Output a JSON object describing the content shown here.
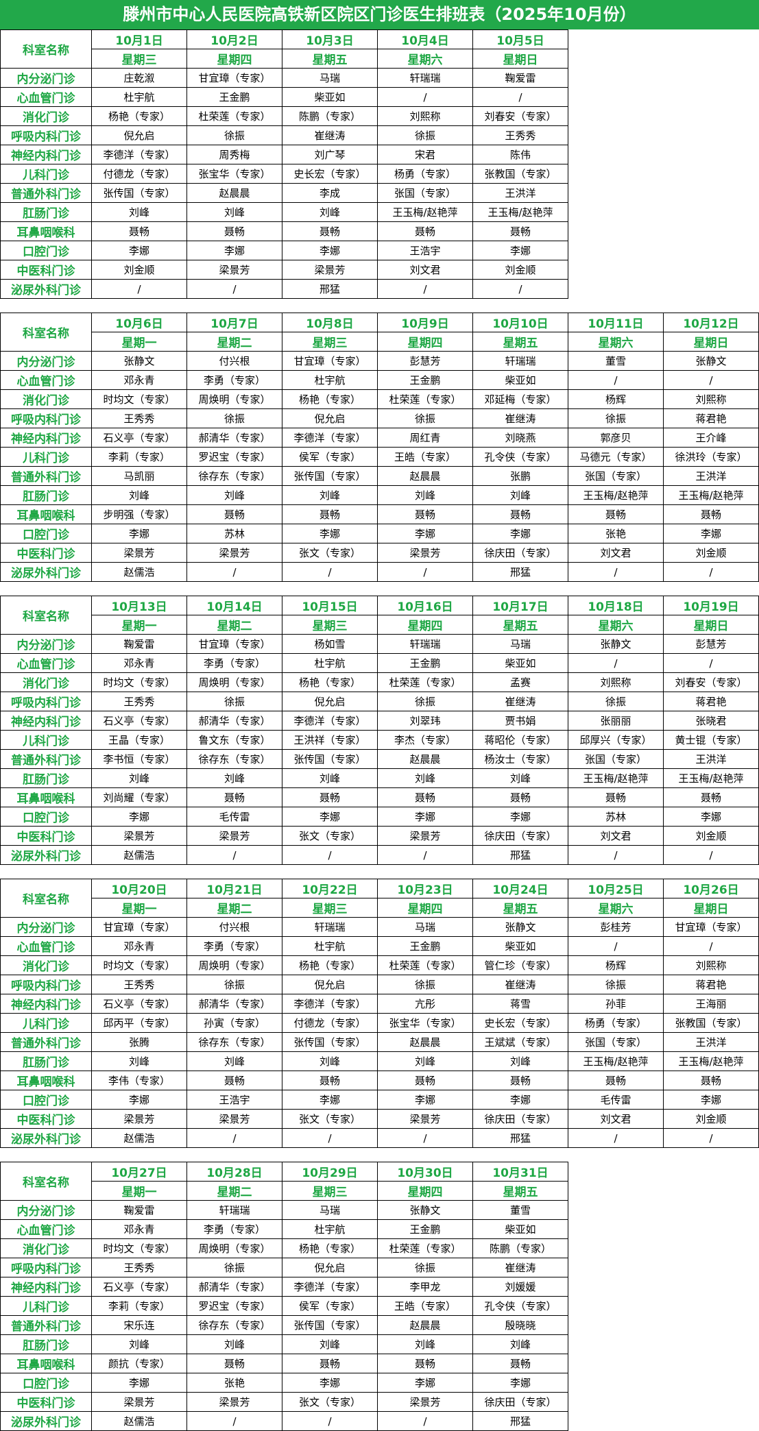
{
  "title": "滕州市中心人民医院高铁新区院区门诊医生排班表（2025年10月份）",
  "header_label": "科室名称",
  "departments": [
    "内分泌门诊",
    "心血管门诊",
    "消化门诊",
    "呼吸内科门诊",
    "神经内科门诊",
    "儿科门诊",
    "普通外科门诊",
    "肛肠门诊",
    "耳鼻咽喉科",
    "口腔门诊",
    "中医科门诊",
    "泌尿外科门诊"
  ],
  "blocks": [
    {
      "dates": [
        "10月1日",
        "10月2日",
        "10月3日",
        "10月4日",
        "10月5日"
      ],
      "weekdays": [
        "星期三",
        "星期四",
        "星期五",
        "星期六",
        "星期日"
      ],
      "rows": [
        [
          "庄乾溆",
          "甘宜璋（专家）",
          "马瑞",
          "轩瑞瑞",
          "鞠爱雷"
        ],
        [
          "杜宇航",
          "王金鹏",
          "柴亚如",
          "/",
          "/"
        ],
        [
          "杨艳（专家）",
          "杜荣莲（专家）",
          "陈鹏（专家）",
          "刘熙称",
          "刘春安（专家）"
        ],
        [
          "倪允启",
          "徐振",
          "崔继涛",
          "徐振",
          "王秀秀"
        ],
        [
          "李德洋（专家）",
          "周秀梅",
          "刘广琴",
          "宋君",
          "陈伟"
        ],
        [
          "付德龙（专家）",
          "张宝华（专家）",
          "史长宏（专家）",
          "杨勇（专家）",
          "张教国（专家）"
        ],
        [
          "张传国（专家）",
          "赵晨晨",
          "李成",
          "张国（专家）",
          "王洪洋"
        ],
        [
          "刘峰",
          "刘峰",
          "刘峰",
          "王玉梅/赵艳萍",
          "王玉梅/赵艳萍"
        ],
        [
          "聂畅",
          "聂畅",
          "聂畅",
          "聂畅",
          "聂畅"
        ],
        [
          "李娜",
          "李娜",
          "李娜",
          "王浩宇",
          "李娜"
        ],
        [
          "刘金顺",
          "梁景芳",
          "梁景芳",
          "刘文君",
          "刘金顺"
        ],
        [
          "/",
          "/",
          "邢猛",
          "/",
          "/"
        ]
      ]
    },
    {
      "dates": [
        "10月6日",
        "10月7日",
        "10月8日",
        "10月9日",
        "10月10日",
        "10月11日",
        "10月12日"
      ],
      "weekdays": [
        "星期一",
        "星期二",
        "星期三",
        "星期四",
        "星期五",
        "星期六",
        "星期日"
      ],
      "rows": [
        [
          "张静文",
          "付兴根",
          "甘宜璋（专家）",
          "彭慧芳",
          "轩瑞瑞",
          "董雪",
          "张静文"
        ],
        [
          "邓永青",
          "李勇（专家）",
          "杜宇航",
          "王金鹏",
          "柴亚如",
          "/",
          "/"
        ],
        [
          "时均文（专家）",
          "周焕明（专家）",
          "杨艳（专家）",
          "杜荣莲（专家）",
          "邓延梅（专家）",
          "杨辉",
          "刘熙称"
        ],
        [
          "王秀秀",
          "徐振",
          "倪允启",
          "徐振",
          "崔继涛",
          "徐振",
          "蒋君艳"
        ],
        [
          "石义亭（专家）",
          "郝清华（专家）",
          "李德洋（专家）",
          "周红青",
          "刘晓燕",
          "郭彦贝",
          "王介峰"
        ],
        [
          "李莉（专家）",
          "罗迟宝（专家）",
          "侯军（专家）",
          "王皓（专家）",
          "孔令侠（专家）",
          "马德元（专家）",
          "徐洪玲（专家）"
        ],
        [
          "马凯丽",
          "徐存东（专家）",
          "张传国（专家）",
          "赵晨晨",
          "张鹏",
          "张国（专家）",
          "王洪洋"
        ],
        [
          "刘峰",
          "刘峰",
          "刘峰",
          "刘峰",
          "刘峰",
          "王玉梅/赵艳萍",
          "王玉梅/赵艳萍"
        ],
        [
          "步明强（专家）",
          "聂畅",
          "聂畅",
          "聂畅",
          "聂畅",
          "聂畅",
          "聂畅"
        ],
        [
          "李娜",
          "苏林",
          "李娜",
          "李娜",
          "李娜",
          "张艳",
          "李娜"
        ],
        [
          "梁景芳",
          "梁景芳",
          "张文（专家）",
          "梁景芳",
          "徐庆田（专家）",
          "刘文君",
          "刘金顺"
        ],
        [
          "赵儒浩",
          "/",
          "/",
          "/",
          "邢猛",
          "/",
          "/"
        ]
      ]
    },
    {
      "dates": [
        "10月13日",
        "10月14日",
        "10月15日",
        "10月16日",
        "10月17日",
        "10月18日",
        "10月19日"
      ],
      "weekdays": [
        "星期一",
        "星期二",
        "星期三",
        "星期四",
        "星期五",
        "星期六",
        "星期日"
      ],
      "rows": [
        [
          "鞠爱雷",
          "甘宜璋（专家）",
          "杨如雪",
          "轩瑞瑞",
          "马瑞",
          "张静文",
          "彭慧芳"
        ],
        [
          "邓永青",
          "李勇（专家）",
          "杜宇航",
          "王金鹏",
          "柴亚如",
          "/",
          "/"
        ],
        [
          "时均文（专家）",
          "周焕明（专家）",
          "杨艳（专家）",
          "杜荣莲（专家）",
          "孟赛",
          "刘熙称",
          "刘春安（专家）"
        ],
        [
          "王秀秀",
          "徐振",
          "倪允启",
          "徐振",
          "崔继涛",
          "徐振",
          "蒋君艳"
        ],
        [
          "石义亭（专家）",
          "郝清华（专家）",
          "李德洋（专家）",
          "刘翠玮",
          "贾书娟",
          "张丽丽",
          "张晓君"
        ],
        [
          "王晶（专家）",
          "鲁文东（专家）",
          "王洪祥（专家）",
          "李杰（专家）",
          "蒋昭伦（专家）",
          "邱厚兴（专家）",
          "黄士锟（专家）"
        ],
        [
          "李书恒（专家）",
          "徐存东（专家）",
          "张传国（专家）",
          "赵晨晨",
          "杨汝士（专家）",
          "张国（专家）",
          "王洪洋"
        ],
        [
          "刘峰",
          "刘峰",
          "刘峰",
          "刘峰",
          "刘峰",
          "王玉梅/赵艳萍",
          "王玉梅/赵艳萍"
        ],
        [
          "刘尚耀（专家）",
          "聂畅",
          "聂畅",
          "聂畅",
          "聂畅",
          "聂畅",
          "聂畅"
        ],
        [
          "李娜",
          "毛传雷",
          "李娜",
          "李娜",
          "李娜",
          "苏林",
          "李娜"
        ],
        [
          "梁景芳",
          "梁景芳",
          "张文（专家）",
          "梁景芳",
          "徐庆田（专家）",
          "刘文君",
          "刘金顺"
        ],
        [
          "赵儒浩",
          "/",
          "/",
          "/",
          "邢猛",
          "/",
          "/"
        ]
      ]
    },
    {
      "dates": [
        "10月20日",
        "10月21日",
        "10月22日",
        "10月23日",
        "10月24日",
        "10月25日",
        "10月26日"
      ],
      "weekdays": [
        "星期一",
        "星期二",
        "星期三",
        "星期四",
        "星期五",
        "星期六",
        "星期日"
      ],
      "rows": [
        [
          "甘宜璋（专家）",
          "付兴根",
          "轩瑞瑞",
          "马瑞",
          "张静文",
          "彭桂芳",
          "甘宜璋（专家）"
        ],
        [
          "邓永青",
          "李勇（专家）",
          "杜宇航",
          "王金鹏",
          "柴亚如",
          "/",
          "/"
        ],
        [
          "时均文（专家）",
          "周焕明（专家）",
          "杨艳（专家）",
          "杜荣莲（专家）",
          "管仁珍（专家）",
          "杨辉",
          "刘熙称"
        ],
        [
          "王秀秀",
          "徐振",
          "倪允启",
          "徐振",
          "崔继涛",
          "徐振",
          "蒋君艳"
        ],
        [
          "石义亭（专家）",
          "郝清华（专家）",
          "李德洋（专家）",
          "亢彤",
          "蒋雪",
          "孙菲",
          "王海丽"
        ],
        [
          "邱丙平（专家）",
          "孙寅（专家）",
          "付德龙（专家）",
          "张宝华（专家）",
          "史长宏（专家）",
          "杨勇（专家）",
          "张教国（专家）"
        ],
        [
          "张腾",
          "徐存东（专家）",
          "张传国（专家）",
          "赵晨晨",
          "王斌斌（专家）",
          "张国（专家）",
          "王洪洋"
        ],
        [
          "刘峰",
          "刘峰",
          "刘峰",
          "刘峰",
          "刘峰",
          "王玉梅/赵艳萍",
          "王玉梅/赵艳萍"
        ],
        [
          "李伟（专家）",
          "聂畅",
          "聂畅",
          "聂畅",
          "聂畅",
          "聂畅",
          "聂畅"
        ],
        [
          "李娜",
          "王浩宇",
          "李娜",
          "李娜",
          "李娜",
          "毛传雷",
          "李娜"
        ],
        [
          "梁景芳",
          "梁景芳",
          "张文（专家）",
          "梁景芳",
          "徐庆田（专家）",
          "刘文君",
          "刘金顺"
        ],
        [
          "赵儒浩",
          "/",
          "/",
          "/",
          "邢猛",
          "/",
          "/"
        ]
      ]
    },
    {
      "dates": [
        "10月27日",
        "10月28日",
        "10月29日",
        "10月30日",
        "10月31日"
      ],
      "weekdays": [
        "星期一",
        "星期二",
        "星期三",
        "星期四",
        "星期五"
      ],
      "rows": [
        [
          "鞠爱雷",
          "轩瑞瑞",
          "马瑞",
          "张静文",
          "董雪"
        ],
        [
          "邓永青",
          "李勇（专家）",
          "杜宇航",
          "王金鹏",
          "柴亚如"
        ],
        [
          "时均文（专家）",
          "周焕明（专家）",
          "杨艳（专家）",
          "杜荣莲（专家）",
          "陈鹏（专家）"
        ],
        [
          "王秀秀",
          "徐振",
          "倪允启",
          "徐振",
          "崔继涛"
        ],
        [
          "石义亭（专家）",
          "郝清华（专家）",
          "李德洋（专家）",
          "李甲龙",
          "刘媛媛"
        ],
        [
          "李莉（专家）",
          "罗迟宝（专家）",
          "侯军（专家）",
          "王皓（专家）",
          "孔令侠（专家）"
        ],
        [
          "宋乐连",
          "徐存东（专家）",
          "张传国（专家）",
          "赵晨晨",
          "殷晓晓"
        ],
        [
          "刘峰",
          "刘峰",
          "刘峰",
          "刘峰",
          "刘峰"
        ],
        [
          "颜抗（专家）",
          "聂畅",
          "聂畅",
          "聂畅",
          "聂畅"
        ],
        [
          "李娜",
          "张艳",
          "李娜",
          "李娜",
          "李娜"
        ],
        [
          "梁景芳",
          "梁景芳",
          "张文（专家）",
          "梁景芳",
          "徐庆田（专家）"
        ],
        [
          "赵儒浩",
          "/",
          "/",
          "/",
          "邢猛"
        ]
      ]
    }
  ]
}
